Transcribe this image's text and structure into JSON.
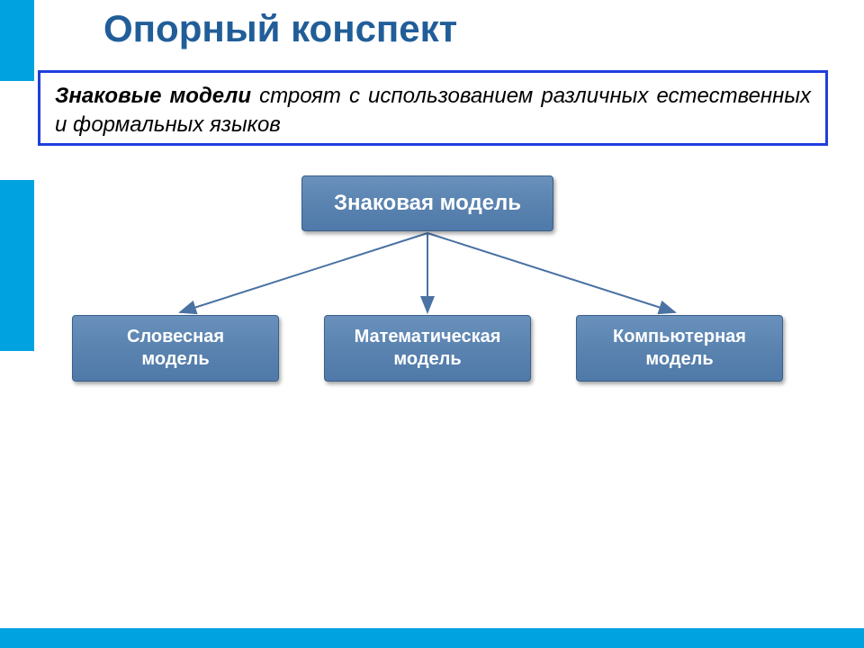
{
  "title": "Опорный конспект",
  "description": {
    "bold_lead": "Знаковые модели",
    "rest": " строят с использованием различных естественных и формальных языков"
  },
  "diagram": {
    "type": "tree",
    "root": {
      "label": "Знаковая модель"
    },
    "children": [
      {
        "label": "Словесная\nмодель"
      },
      {
        "label": "Математическая\nмодель"
      },
      {
        "label": "Компьютерная\nмодель"
      }
    ],
    "node_fill_top": "#6a91bc",
    "node_fill_bottom": "#4f79a8",
    "node_border": "#3a5f8a",
    "node_text_color": "#ffffff",
    "root_fontsize": 24,
    "child_fontsize": 20,
    "arrow_color": "#4a72a3",
    "arrow_width": 2,
    "background_color": "#ffffff"
  },
  "accent": {
    "sidebar_color": "#00a3e0",
    "title_color": "#215e99",
    "desc_border_color": "#1f3fdc"
  }
}
